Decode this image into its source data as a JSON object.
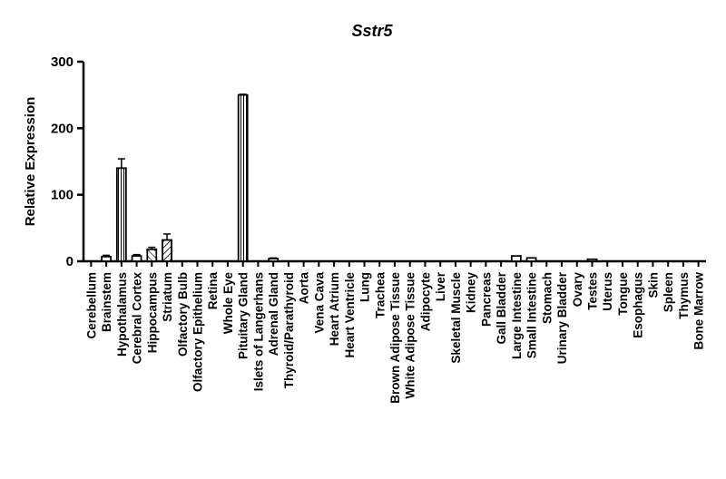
{
  "chart_data": {
    "type": "bar",
    "title": "Sstr5",
    "xlabel": "",
    "ylabel": "Relative Expression",
    "ylim": [
      0,
      300
    ],
    "yticks": [
      0,
      100,
      200,
      300
    ],
    "grid": false,
    "legend": "none",
    "categories": [
      "Cerebellum",
      "Brainstem",
      "Hypothalamus",
      "Cerebral Cortex",
      "Hippocampus",
      "Striatum",
      "Olfactory Bulb",
      "Olfactory Epithelium",
      "Retina",
      "Whole Eye",
      "Pituitary Gland",
      "Islets of Langerhans",
      "Adrenal Gland",
      "Thyroid/Parathyroid",
      "Aorta",
      "Vena Cava",
      "Heart Atrium",
      "Heart Ventricle",
      "Lung",
      "Trachea",
      "Brown Adipose Tissue",
      "White Adipose Tissue",
      "Adipocyte",
      "Liver",
      "Skeletal Muscle",
      "Kidney",
      "Pancreas",
      "Gall Bladder",
      "Large Intestine",
      "Small Intestine",
      "Stomach",
      "Urinary Bladder",
      "Ovary",
      "Testes",
      "Uterus",
      "Tongue",
      "Esophagus",
      "Skin",
      "Spleen",
      "Thymus",
      "Bone Marrow"
    ],
    "values": [
      0,
      7,
      140,
      8,
      18,
      32,
      0,
      0,
      0,
      0,
      250,
      0,
      4,
      0,
      0,
      0,
      0,
      0,
      0,
      0,
      0,
      0,
      0,
      0,
      0,
      0,
      0,
      0,
      8,
      5,
      0,
      0,
      0,
      3,
      0,
      0,
      0,
      0,
      0,
      0,
      0
    ],
    "errors": [
      0,
      2,
      14,
      2,
      3,
      9,
      0,
      0,
      0,
      0,
      1,
      0,
      1,
      0,
      0,
      0,
      0,
      0,
      0,
      0,
      0,
      0,
      0,
      0,
      0,
      0,
      0,
      0,
      0,
      0,
      0,
      0,
      0,
      0,
      0,
      0,
      0,
      0,
      0,
      0,
      0
    ],
    "patterns": [
      "white",
      "white",
      "vertical",
      "white",
      "diagonal-cross",
      "diagonal",
      "white",
      "white",
      "white",
      "white",
      "vertical",
      "white",
      "white",
      "white",
      "white",
      "white",
      "white",
      "white",
      "white",
      "white",
      "white",
      "white",
      "white",
      "white",
      "white",
      "white",
      "white",
      "white",
      "white",
      "white",
      "white",
      "white",
      "white",
      "white",
      "white",
      "white",
      "white",
      "white",
      "white",
      "white",
      "white"
    ]
  }
}
